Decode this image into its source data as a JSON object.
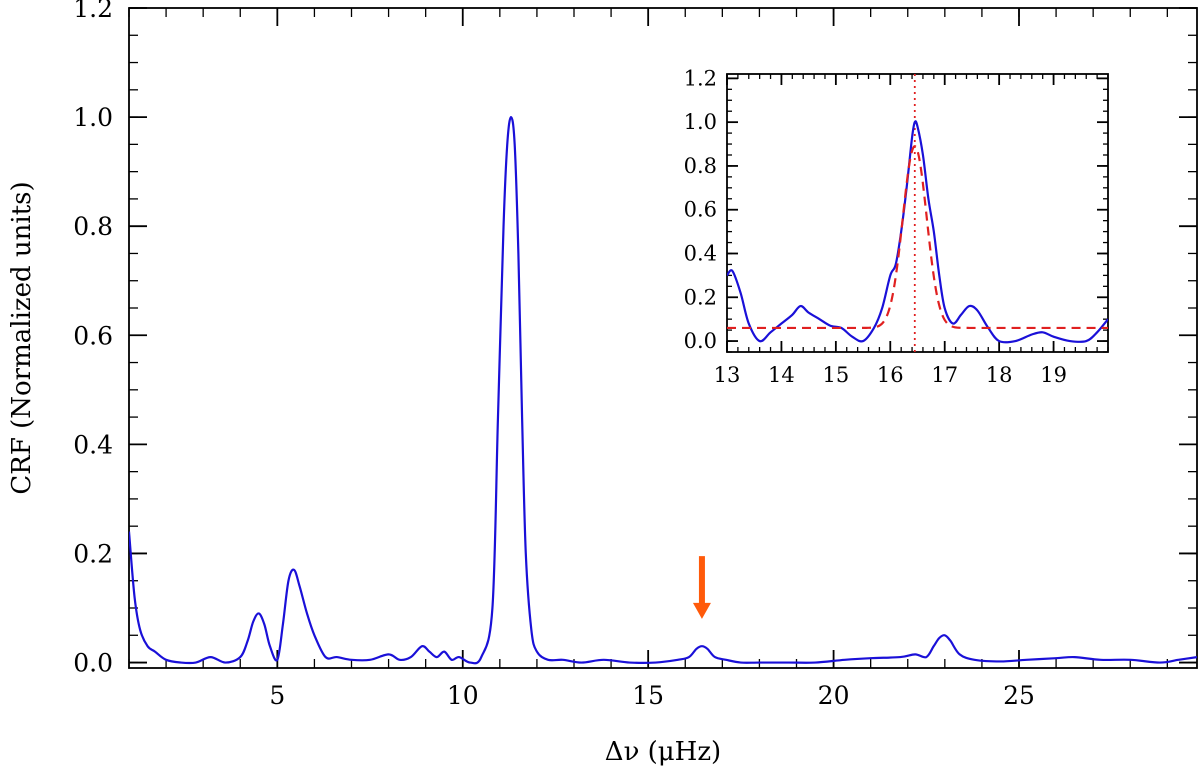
{
  "chart_data": [
    {
      "type": "line",
      "panel": "main",
      "xlabel": "Δν  (μHz)",
      "ylabel": "CRF (Normalized units)",
      "xlim": [
        1,
        29.8
      ],
      "ylim": [
        -0.01,
        1.2
      ],
      "x_ticks": [
        5,
        10,
        15,
        20,
        25
      ],
      "x_tick_labels": [
        "5",
        "10",
        "15",
        "20",
        "25"
      ],
      "y_ticks": [
        0.0,
        0.2,
        0.4,
        0.6,
        0.8,
        1.0,
        1.2
      ],
      "y_tick_labels": [
        "0.0",
        "0.2",
        "0.4",
        "0.6",
        "0.8",
        "1.0",
        "1.2"
      ],
      "series": [
        {
          "color": "#1a10d8",
          "x": [
            1.0,
            1.15,
            1.3,
            1.5,
            1.7,
            2.0,
            2.4,
            2.8,
            3.2,
            3.6,
            4.0,
            4.2,
            4.35,
            4.5,
            4.65,
            4.8,
            5.0,
            5.15,
            5.3,
            5.45,
            5.6,
            5.8,
            6.0,
            6.3,
            6.6,
            7.0,
            7.5,
            8.0,
            8.3,
            8.6,
            8.9,
            9.1,
            9.3,
            9.5,
            9.7,
            9.9,
            10.2,
            10.5,
            10.8,
            10.95,
            11.1,
            11.2,
            11.3,
            11.4,
            11.5,
            11.6,
            11.7,
            11.85,
            12.0,
            12.3,
            12.7,
            13.2,
            13.8,
            14.5,
            15.2,
            15.8,
            16.1,
            16.3,
            16.45,
            16.6,
            16.8,
            17.1,
            17.5,
            18.0,
            18.8,
            19.5,
            20.3,
            21.0,
            21.8,
            22.2,
            22.5,
            22.7,
            22.85,
            23.0,
            23.15,
            23.4,
            23.8,
            24.5,
            25.2,
            26.0,
            26.5,
            27.2,
            28.0,
            28.8,
            29.3,
            29.8
          ],
          "y": [
            0.24,
            0.12,
            0.06,
            0.03,
            0.02,
            0.005,
            0.0,
            0.0,
            0.01,
            0.0,
            0.01,
            0.04,
            0.075,
            0.09,
            0.07,
            0.03,
            0.005,
            0.07,
            0.15,
            0.17,
            0.14,
            0.09,
            0.05,
            0.01,
            0.01,
            0.005,
            0.005,
            0.015,
            0.005,
            0.01,
            0.03,
            0.02,
            0.01,
            0.02,
            0.005,
            0.01,
            0.0,
            0.01,
            0.1,
            0.45,
            0.8,
            0.95,
            1.0,
            0.95,
            0.75,
            0.45,
            0.2,
            0.06,
            0.02,
            0.005,
            0.005,
            0.0,
            0.005,
            0.0,
            0.0,
            0.005,
            0.01,
            0.025,
            0.03,
            0.025,
            0.01,
            0.005,
            0.0,
            0.0,
            0.0,
            0.0,
            0.005,
            0.008,
            0.01,
            0.015,
            0.01,
            0.03,
            0.045,
            0.05,
            0.04,
            0.015,
            0.005,
            0.002,
            0.005,
            0.008,
            0.01,
            0.005,
            0.005,
            0.0,
            0.005,
            0.01
          ]
        }
      ],
      "annotations": [
        {
          "type": "arrow",
          "color": "#ff5a0a",
          "x": 16.45,
          "y_tip": 0.08,
          "y_tail": 0.195
        }
      ]
    },
    {
      "type": "line",
      "panel": "inset",
      "xlim": [
        13,
        20
      ],
      "ylim": [
        -0.05,
        1.22
      ],
      "x_ticks": [
        13,
        14,
        15,
        16,
        17,
        18,
        19
      ],
      "x_tick_labels": [
        "13",
        "14",
        "15",
        "16",
        "17",
        "18",
        "19"
      ],
      "y_ticks": [
        0.0,
        0.2,
        0.4,
        0.6,
        0.8,
        1.0,
        1.2
      ],
      "y_tick_labels": [
        "0.0",
        "0.2",
        "0.4",
        "0.6",
        "0.8",
        "1.0",
        "1.2"
      ],
      "series": [
        {
          "color": "#1a10d8",
          "x": [
            13.0,
            13.1,
            13.25,
            13.4,
            13.6,
            13.8,
            14.0,
            14.2,
            14.35,
            14.5,
            14.7,
            14.9,
            15.1,
            15.3,
            15.5,
            15.7,
            15.85,
            16.0,
            16.1,
            16.2,
            16.3,
            16.4,
            16.45,
            16.5,
            16.6,
            16.7,
            16.8,
            16.9,
            17.0,
            17.15,
            17.3,
            17.45,
            17.6,
            17.8,
            18.0,
            18.3,
            18.6,
            18.8,
            19.0,
            19.3,
            19.6,
            19.8,
            20.0
          ],
          "y": [
            0.3,
            0.32,
            0.22,
            0.08,
            0.0,
            0.04,
            0.08,
            0.12,
            0.16,
            0.13,
            0.1,
            0.07,
            0.06,
            0.02,
            0.0,
            0.06,
            0.15,
            0.3,
            0.35,
            0.5,
            0.7,
            0.93,
            1.0,
            0.98,
            0.85,
            0.65,
            0.5,
            0.3,
            0.15,
            0.08,
            0.12,
            0.16,
            0.14,
            0.06,
            0.0,
            0.0,
            0.03,
            0.04,
            0.02,
            0.0,
            0.0,
            0.04,
            0.1
          ]
        },
        {
          "color": "#e02020",
          "dash": "dashed",
          "baseline": 0.06,
          "center": 16.45,
          "amplitude": 0.83,
          "sigma": 0.22
        }
      ],
      "reference_line": {
        "color": "#e02020",
        "dash": "dotted",
        "x": 16.45
      }
    }
  ]
}
